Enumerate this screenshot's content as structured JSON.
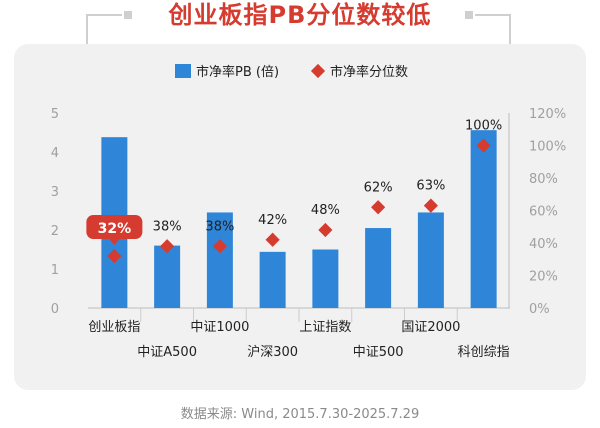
{
  "title": "创业板指PB分位数较低",
  "source": "数据来源: Wind, 2015.7.30-2025.7.29",
  "colors": {
    "bar": "#2f86d8",
    "marker": "#d63b2f",
    "title": "#d63b2f"
  },
  "chart_data": {
    "type": "bar",
    "categories": [
      "创业板指",
      "中证A500",
      "中证1000",
      "沪深300",
      "上证指数",
      "中证500",
      "国证2000",
      "科创综指"
    ],
    "series": [
      {
        "name": "市净率PB (倍)",
        "type": "bar",
        "axis": "left",
        "values": [
          4.38,
          1.6,
          2.45,
          1.44,
          1.5,
          2.05,
          2.45,
          4.56
        ]
      },
      {
        "name": "市净率分位数",
        "type": "scatter",
        "axis": "right",
        "values": [
          32,
          38,
          38,
          42,
          48,
          62,
          63,
          100
        ],
        "labels": [
          "32%",
          "38%",
          "38%",
          "42%",
          "48%",
          "62%",
          "63%",
          "100%"
        ]
      }
    ],
    "left_axis": {
      "ylim": [
        0,
        5
      ],
      "ticks": [
        "0",
        "1",
        "2",
        "3",
        "4",
        "5"
      ]
    },
    "right_axis": {
      "ylim": [
        0,
        120
      ],
      "ticks": [
        "0%",
        "20%",
        "40%",
        "60%",
        "80%",
        "100%",
        "120%"
      ]
    },
    "legend_position": "top",
    "highlighted_label_index": 0
  }
}
